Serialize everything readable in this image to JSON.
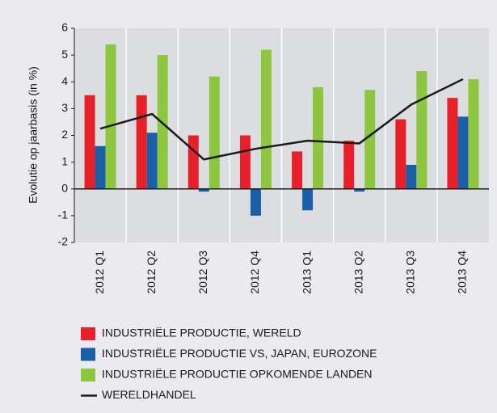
{
  "chart_data": {
    "type": "bar",
    "y_label": "Evolutie op jaarbasis (in %)",
    "categories": [
      "2012 Q1",
      "2012 Q2",
      "2012 Q3",
      "2012 Q4",
      "2013 Q1",
      "2013 Q2",
      "2013 Q3",
      "2013 Q4"
    ],
    "series": [
      {
        "name": "INDUSTRIËLE PRODUCTIE, WERELD",
        "color": "#e8202a",
        "type": "bar",
        "values": [
          3.5,
          3.5,
          2.0,
          2.0,
          1.4,
          1.8,
          2.6,
          3.4
        ]
      },
      {
        "name": "INDUSTRIËLE PRODUCTIE VS, JAPAN, EUROZONE",
        "color": "#1b5fa8",
        "type": "bar",
        "values": [
          1.6,
          2.1,
          -0.1,
          -1.0,
          -0.8,
          -0.1,
          0.9,
          2.7
        ]
      },
      {
        "name": "INDUSTRIËLE PRODUCTIE OPKOMENDE LANDEN",
        "color": "#8dc63f",
        "type": "bar",
        "values": [
          5.4,
          5.0,
          4.2,
          5.2,
          3.8,
          3.7,
          4.4,
          4.1
        ]
      },
      {
        "name": "WERELDHANDEL",
        "color": "#1a1a1a",
        "type": "line",
        "values": [
          2.25,
          2.8,
          1.1,
          1.5,
          1.8,
          1.7,
          3.15,
          4.1
        ]
      }
    ],
    "ylim": [
      -2,
      6
    ],
    "yticks": [
      -2,
      -1,
      0,
      1,
      2,
      3,
      4,
      5,
      6
    ]
  }
}
